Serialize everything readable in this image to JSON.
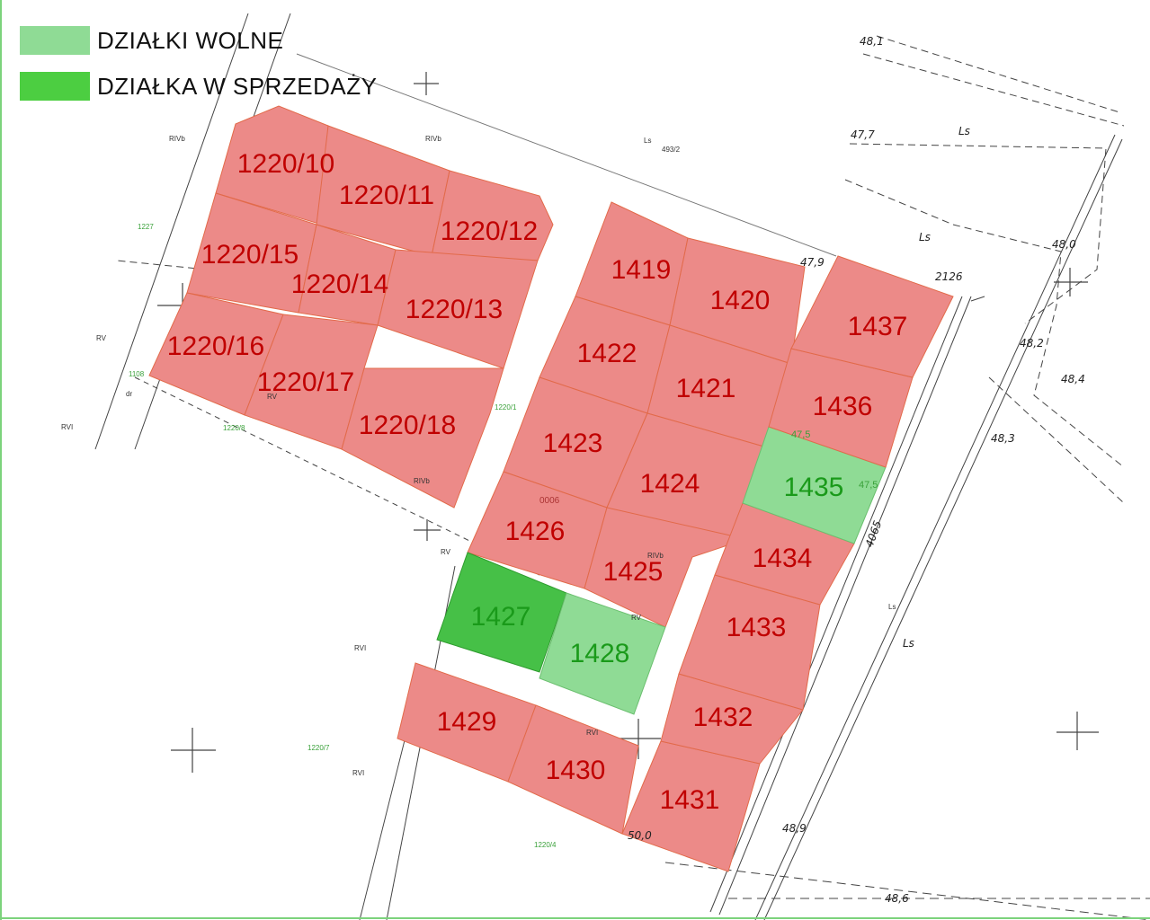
{
  "legend": {
    "free_label": "DZIAŁKI WOLNE",
    "free_color": "#8fdb95",
    "sale_label": "DZIAŁKA W SPRZEDAŻY",
    "sale_color": "#4cce41"
  },
  "colors": {
    "taken": "#ec8a88",
    "taken_text": "#c00000",
    "free_text": "#1a9a1a",
    "sale_fill": "#46c047"
  },
  "lots": [
    {
      "id": "1220/10",
      "status": "taken"
    },
    {
      "id": "1220/11",
      "status": "taken"
    },
    {
      "id": "1220/12",
      "status": "taken"
    },
    {
      "id": "1220/15",
      "status": "taken"
    },
    {
      "id": "1220/14",
      "status": "taken"
    },
    {
      "id": "1220/13",
      "status": "taken"
    },
    {
      "id": "1220/16",
      "status": "taken"
    },
    {
      "id": "1220/17",
      "status": "taken"
    },
    {
      "id": "1220/18",
      "status": "taken"
    },
    {
      "id": "1419",
      "status": "taken"
    },
    {
      "id": "1420",
      "status": "taken"
    },
    {
      "id": "1422",
      "status": "taken"
    },
    {
      "id": "1421",
      "status": "taken"
    },
    {
      "id": "1423",
      "status": "taken"
    },
    {
      "id": "1424",
      "status": "taken"
    },
    {
      "id": "1426",
      "status": "taken"
    },
    {
      "id": "1425",
      "status": "taken"
    },
    {
      "id": "1427",
      "status": "sale"
    },
    {
      "id": "1428",
      "status": "free"
    },
    {
      "id": "1429",
      "status": "taken"
    },
    {
      "id": "1430",
      "status": "taken"
    },
    {
      "id": "1431",
      "status": "taken"
    },
    {
      "id": "1432",
      "status": "taken"
    },
    {
      "id": "1433",
      "status": "taken"
    },
    {
      "id": "1434",
      "status": "taken"
    },
    {
      "id": "1435",
      "status": "free"
    },
    {
      "id": "1436",
      "status": "taken"
    },
    {
      "id": "1437",
      "status": "taken"
    }
  ],
  "survey_labels": {
    "rivb1": "RIVb",
    "rivb2": "RIVb",
    "ls1": "Ls",
    "n493": "493/2",
    "n1227": "1227",
    "rv1": "RV",
    "n1108": "1108",
    "dr": "dr",
    "rvi1": "RVI",
    "n1220_8": "1220/8",
    "rv2": "RV",
    "n1220_1": "1220/1",
    "rivb3": "RIVb",
    "rv3": "RV",
    "rvi2": "RVI",
    "n1220_7": "1220/7",
    "rvi3": "RVI",
    "n1220_4": "1220/4",
    "n0006": "0006",
    "rivb4": "RIVb",
    "rv4": "RV",
    "rvi4": "RVI",
    "h481": "48,1",
    "h477": "47,7",
    "ls2": "Ls",
    "ls3": "Ls",
    "h480": "48,0",
    "h479": "47,9",
    "n2126": "2126",
    "h482": "48,2",
    "h484": "48,4",
    "h483": "48,3",
    "h475a": "47,5",
    "h475b": "47,5",
    "road": "4065",
    "ls4": "Ls",
    "ls5": "Ls",
    "h489": "48,9",
    "h500": "50,0",
    "h486": "48,6"
  }
}
